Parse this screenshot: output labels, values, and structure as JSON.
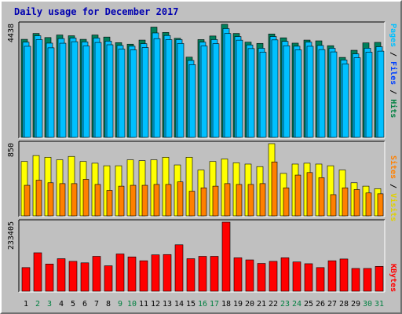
{
  "title": "Daily usage for December 2017",
  "labels": {
    "pages": "Pages",
    "files": "Files",
    "hits": "Hits",
    "sites": "Sites",
    "visits": "Visits",
    "kbytes": "KBytes",
    "sep": " / "
  },
  "colors": {
    "hits": "#00805c",
    "files": "#00c0ff",
    "pages": "#0040ff",
    "visits": "#ffff00",
    "sites": "#ff8000",
    "kbytes": "#ff0000",
    "title": "#0000b0",
    "weekend": "#008040",
    "weekday": "#000000"
  },
  "chart_data": [
    {
      "type": "bar",
      "title": "Daily usage for December 2017",
      "ylabel": "Pages / Files / Hits",
      "ylim": [
        0,
        4438
      ],
      "ytick_label": "4438",
      "categories": [
        "1",
        "2",
        "3",
        "4",
        "5",
        "6",
        "7",
        "8",
        "9",
        "10",
        "11",
        "12",
        "13",
        "14",
        "15",
        "16",
        "17",
        "18",
        "19",
        "20",
        "21",
        "22",
        "23",
        "24",
        "25",
        "26",
        "27",
        "28",
        "29",
        "30",
        "31"
      ],
      "series": [
        {
          "name": "Hits",
          "values": [
            3850,
            4080,
            3920,
            4020,
            3990,
            3850,
            4020,
            3940,
            3720,
            3660,
            3820,
            4330,
            4120,
            3890,
            3150,
            3840,
            3980,
            4440,
            4080,
            3740,
            3690,
            4060,
            3910,
            3700,
            3820,
            3790,
            3600,
            3140,
            3420,
            3710,
            3730
          ]
        },
        {
          "name": "Files",
          "values": [
            3740,
            3990,
            3700,
            3880,
            3900,
            3750,
            3900,
            3780,
            3610,
            3580,
            3680,
            4100,
            4000,
            3840,
            3020,
            3740,
            3840,
            4270,
            3960,
            3630,
            3500,
            3960,
            3770,
            3580,
            3740,
            3610,
            3500,
            3040,
            3280,
            3500,
            3560
          ]
        },
        {
          "name": "Pages",
          "values": [
            3700,
            3960,
            3640,
            3820,
            3880,
            3710,
            3850,
            3760,
            3590,
            3560,
            3650,
            4000,
            3960,
            3810,
            2980,
            3710,
            3800,
            4200,
            3940,
            3610,
            3470,
            3950,
            3720,
            3560,
            3700,
            3570,
            3480,
            3010,
            3250,
            3470,
            3510
          ]
        }
      ]
    },
    {
      "type": "bar",
      "ylabel": "Sites / Visits",
      "ylim": [
        0,
        850
      ],
      "ytick_label": "850",
      "categories": [
        "1",
        "2",
        "3",
        "4",
        "5",
        "6",
        "7",
        "8",
        "9",
        "10",
        "11",
        "12",
        "13",
        "14",
        "15",
        "16",
        "17",
        "18",
        "19",
        "20",
        "21",
        "22",
        "23",
        "24",
        "25",
        "26",
        "27",
        "28",
        "29",
        "30",
        "31"
      ],
      "series": [
        {
          "name": "Visits",
          "values": [
            640,
            710,
            690,
            660,
            700,
            640,
            620,
            590,
            590,
            660,
            650,
            660,
            690,
            600,
            690,
            540,
            640,
            670,
            625,
            610,
            580,
            850,
            500,
            610,
            620,
            610,
            590,
            540,
            390,
            350,
            320
          ]
        },
        {
          "name": "Sites",
          "values": [
            360,
            420,
            390,
            380,
            380,
            430,
            370,
            300,
            350,
            360,
            360,
            370,
            370,
            400,
            290,
            330,
            350,
            380,
            370,
            370,
            380,
            635,
            330,
            480,
            510,
            450,
            250,
            330,
            310,
            270,
            260
          ]
        }
      ]
    },
    {
      "type": "bar",
      "ylabel": "KBytes",
      "ylim": [
        0,
        233405
      ],
      "ytick_label": "233405",
      "categories": [
        "1",
        "2",
        "3",
        "4",
        "5",
        "6",
        "7",
        "8",
        "9",
        "10",
        "11",
        "12",
        "13",
        "14",
        "15",
        "16",
        "17",
        "18",
        "19",
        "20",
        "21",
        "22",
        "23",
        "24",
        "25",
        "26",
        "27",
        "28",
        "29",
        "30",
        "31"
      ],
      "series": [
        {
          "name": "KBytes",
          "values": [
            80000,
            130000,
            92000,
            110000,
            101000,
            96000,
            118000,
            86000,
            126000,
            116000,
            103000,
            123000,
            124000,
            157000,
            110000,
            118000,
            118000,
            233405,
            113000,
            106000,
            94000,
            101000,
            113000,
            99000,
            93000,
            80000,
            103000,
            109000,
            77000,
            77000,
            84000
          ]
        }
      ]
    }
  ]
}
